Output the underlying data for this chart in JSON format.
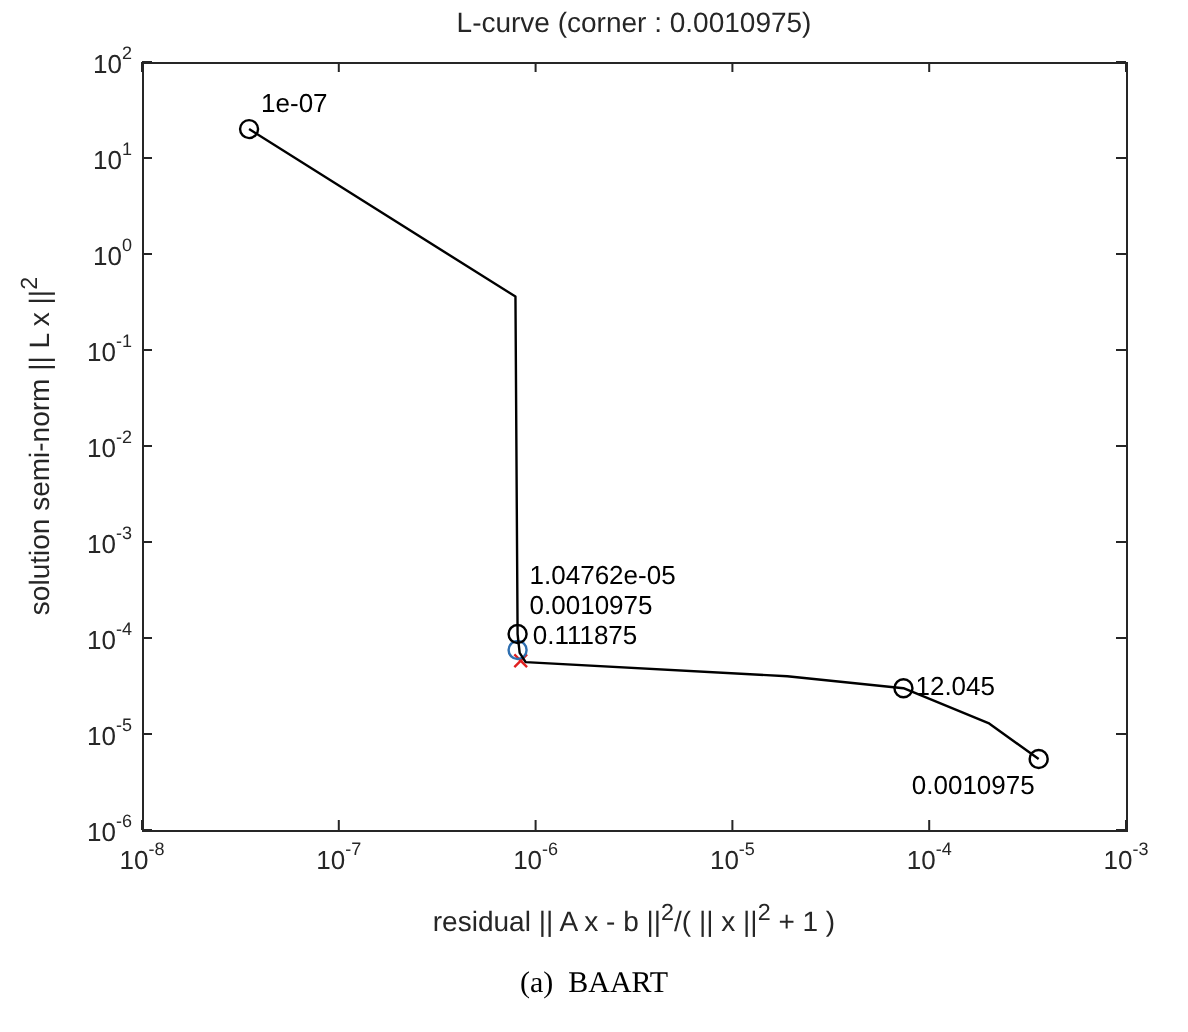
{
  "chart_data": {
    "type": "line",
    "title": "L-curve (corner : 0.0010975)",
    "xlabel": "residual || A x - b ||$^{2}$/( || x ||$^{2}$ + 1 )",
    "ylabel": "solution semi-norm || L x ||$^{2}$",
    "log": "xy",
    "xlim": [
      1e-08,
      0.001
    ],
    "ylim": [
      1e-06,
      100
    ],
    "xticks": [
      {
        "value": 1e-08,
        "label": "10$^{-8}$"
      },
      {
        "value": 1e-07,
        "label": "10$^{-7}$"
      },
      {
        "value": 1e-06,
        "label": "10$^{-6}$"
      },
      {
        "value": 1e-05,
        "label": "10$^{-5}$"
      },
      {
        "value": 0.0001,
        "label": "10$^{-4}$"
      },
      {
        "value": 0.001,
        "label": "10$^{-3}$"
      }
    ],
    "yticks": [
      {
        "value": 1e-06,
        "label": "10$^{-6}$"
      },
      {
        "value": 1e-05,
        "label": "10$^{-5}$"
      },
      {
        "value": 0.0001,
        "label": "10$^{-4}$"
      },
      {
        "value": 0.001,
        "label": "10$^{-3}$"
      },
      {
        "value": 0.01,
        "label": "10$^{-2}$"
      },
      {
        "value": 0.1,
        "label": "10$^{-1}$"
      },
      {
        "value": 1,
        "label": "10$^{0}$"
      },
      {
        "value": 10,
        "label": "10$^{1}$"
      },
      {
        "value": 100,
        "label": "10$^{2}$"
      }
    ],
    "series": [
      {
        "color": "#000000",
        "marker": "none",
        "x": [
          3.5e-08,
          7.9e-07,
          8.1e-07,
          8.3e-07,
          8.9e-07,
          1.9e-05,
          7.4e-05,
          0.0002,
          0.00036
        ],
        "values": [
          20,
          0.36,
          0.00011,
          7e-05,
          5.6e-05,
          4e-05,
          3e-05,
          1.3e-05,
          5.5e-06
        ]
      },
      {
        "type": "scatter",
        "color": "#000000",
        "marker": "circle",
        "x": [
          3.5e-08,
          8.1e-07,
          7.4e-05,
          0.00036
        ],
        "values": [
          20,
          0.00011,
          3e-05,
          5.5e-06
        ]
      },
      {
        "type": "scatter",
        "color": "#2f6fb0",
        "marker": "circle",
        "x": [
          8.1e-07
        ],
        "values": [
          7.5e-05
        ]
      },
      {
        "type": "scatter",
        "color": "#e02020",
        "marker": "cross",
        "x": [
          8.4e-07
        ],
        "values": [
          5.8e-05
        ]
      }
    ],
    "annotations": [
      {
        "text": "1e-07",
        "x": 3.5e-08,
        "y": 20
      },
      {
        "text": "1.04762e-05",
        "x": 8.1e-07,
        "y": 0.00011
      },
      {
        "text": "0.0010975",
        "x": 8.1e-07,
        "y": 7.5e-05
      },
      {
        "text": "0.111875",
        "x": 8.4e-07,
        "y": 5.8e-05
      },
      {
        "text": "12.045",
        "x": 7.4e-05,
        "y": 3e-05
      },
      {
        "text": "0.0010975",
        "x": 0.00036,
        "y": 5.5e-06
      },
      "(a)  BAART"
    ]
  }
}
